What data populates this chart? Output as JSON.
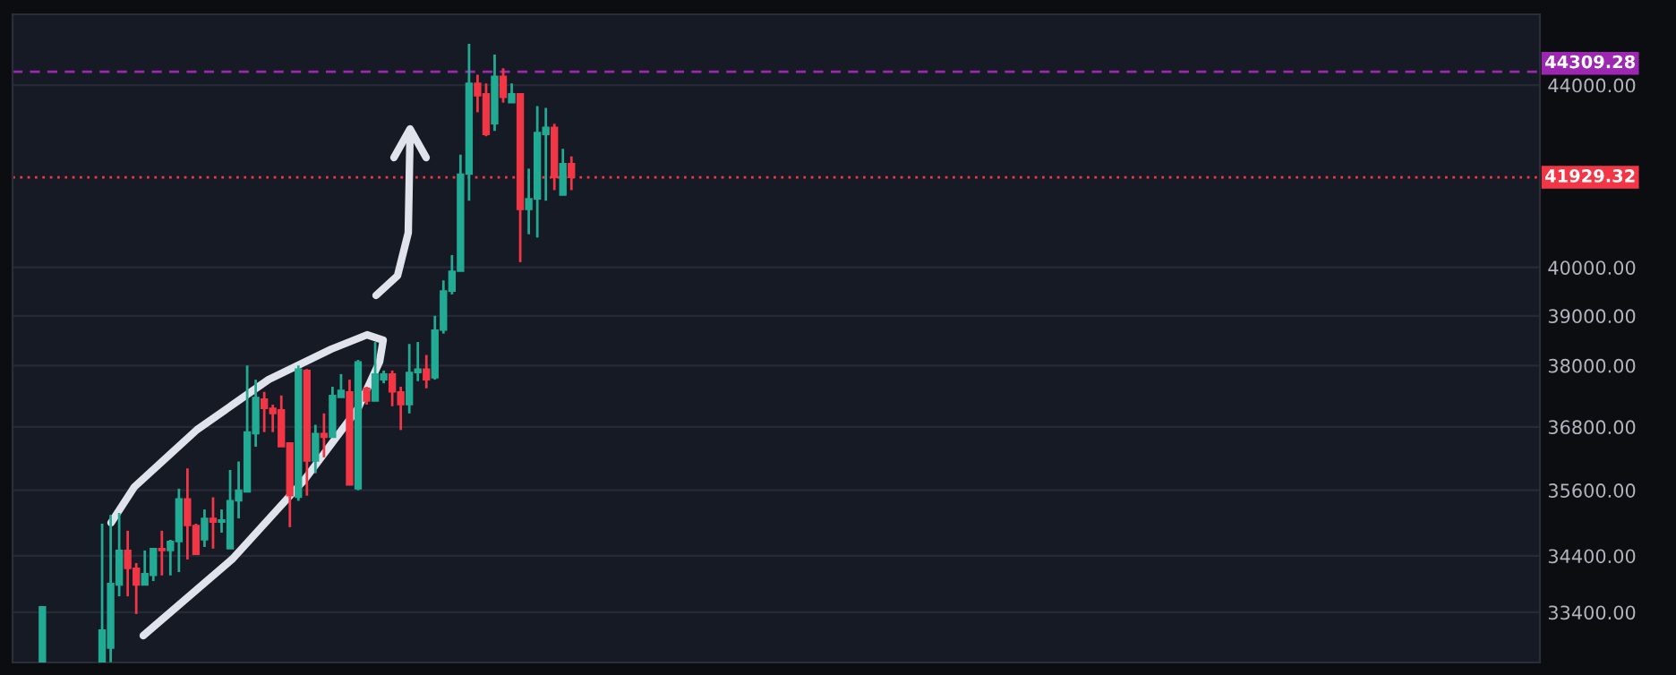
{
  "chart_data": {
    "type": "candlestick",
    "categories": [
      null,
      null,
      null,
      null,
      null,
      null,
      null,
      null,
      null,
      null,
      null,
      null,
      null,
      null,
      null,
      null,
      null,
      null,
      null,
      null,
      null,
      null,
      null,
      null,
      null,
      null,
      null,
      null,
      null,
      null,
      null,
      null,
      null,
      null,
      null,
      null,
      null,
      null,
      null,
      null,
      null,
      null,
      null,
      null,
      null,
      null,
      null,
      null,
      null,
      null,
      null,
      null,
      null,
      null,
      null,
      null,
      null,
      null,
      null,
      null,
      null,
      null,
      null,
      null,
      null,
      null,
      null,
      null,
      null,
      null,
      null,
      null,
      null,
      null,
      null,
      null,
      null,
      null,
      null,
      null,
      null,
      null,
      null,
      null,
      null,
      null,
      null,
      null,
      null,
      null,
      null,
      null,
      null,
      null,
      null,
      null,
      null,
      null,
      null,
      null,
      null,
      null,
      null,
      null,
      null,
      null,
      null,
      null,
      null,
      null,
      null,
      null,
      null,
      null,
      null,
      null,
      null,
      null,
      null,
      null,
      null,
      null,
      null,
      null,
      null,
      null,
      null,
      null,
      null,
      null,
      null,
      null,
      null,
      null,
      null,
      null,
      null,
      null,
      null,
      null,
      null,
      null,
      null,
      null,
      null,
      null,
      null,
      null,
      null,
      null,
      null,
      null,
      null,
      null,
      null,
      null,
      null,
      null,
      null,
      null,
      null,
      null,
      null,
      null,
      null,
      null,
      null,
      null,
      null,
      null,
      null,
      null,
      null,
      null,
      null,
      null,
      null,
      null,
      null
    ],
    "ohlc": [
      null,
      null,
      null,
      [
        32540,
        33494,
        32540,
        33494
      ],
      null,
      null,
      null,
      null,
      null,
      null,
      [
        32540,
        34983,
        32540,
        33090
      ],
      [
        32780,
        35145,
        32540,
        33904
      ],
      [
        33880,
        35180,
        33680,
        34497
      ],
      [
        34497,
        34855,
        33680,
        34175
      ],
      [
        34175,
        34270,
        33370,
        33880
      ],
      [
        33880,
        34497,
        33880,
        34080
      ],
      [
        34050,
        34530,
        33950,
        34530
      ],
      [
        34530,
        34855,
        34050,
        34497
      ],
      [
        34497,
        34690,
        34050,
        34660
      ],
      [
        34660,
        35630,
        34110,
        35440
      ],
      [
        35440,
        36010,
        34335,
        34950
      ],
      [
        34950,
        34983,
        34430,
        34430
      ],
      [
        34690,
        35245,
        34560,
        35080
      ],
      [
        35080,
        35470,
        34530,
        35015
      ],
      [
        35015,
        35245,
        34820,
        35050
      ],
      [
        34530,
        35980,
        34530,
        35405
      ],
      [
        35405,
        36140,
        35080,
        35600
      ],
      [
        35570,
        38000,
        35570,
        36700
      ],
      [
        36670,
        37720,
        36420,
        37370
      ],
      [
        37340,
        37480,
        36700,
        37160
      ],
      [
        37160,
        37230,
        36700,
        37060
      ],
      [
        37130,
        37410,
        36420,
        36420
      ],
      [
        36490,
        36490,
        34920,
        35500
      ],
      [
        35470,
        38000,
        35405,
        37930
      ],
      [
        37900,
        37930,
        35500,
        36150
      ],
      [
        36150,
        36840,
        35920,
        36670
      ],
      [
        36670,
        37060,
        36220,
        36600
      ],
      [
        36600,
        37580,
        36600,
        37410
      ],
      [
        37370,
        37830,
        37370,
        37510
      ],
      [
        37480,
        37720,
        35700,
        35700
      ],
      [
        35630,
        38110,
        35600,
        38070
      ],
      [
        37550,
        37580,
        37230,
        37300
      ],
      [
        37300,
        38470,
        37300,
        37830
      ],
      [
        37720,
        37900,
        37650,
        37830
      ],
      [
        37830,
        37900,
        37200,
        37480
      ],
      [
        37480,
        37580,
        36740,
        37230
      ],
      [
        37230,
        38430,
        37060,
        37860
      ],
      [
        37860,
        38470,
        37690,
        37930
      ],
      [
        37930,
        38210,
        37550,
        37720
      ],
      [
        37760,
        39000,
        37720,
        38710
      ],
      [
        38710,
        39730,
        38640,
        39510
      ],
      [
        39510,
        40260,
        39440,
        39920
      ],
      [
        39920,
        42430,
        39920,
        42000
      ],
      [
        42000,
        44960,
        41420,
        44040
      ],
      [
        44040,
        44240,
        43380,
        43760
      ],
      [
        43800,
        44040,
        42840,
        42880
      ],
      [
        43120,
        44710,
        42960,
        44200
      ],
      [
        44200,
        44390,
        43600,
        43720
      ],
      [
        43600,
        44040,
        43600,
        43800
      ],
      [
        43800,
        43800,
        40110,
        41230
      ],
      [
        41230,
        42120,
        40700,
        41460
      ],
      [
        41460,
        43520,
        40630,
        42920
      ],
      [
        42880,
        43480,
        41420,
        43040
      ],
      [
        43040,
        43120,
        41650,
        41930
      ],
      [
        41540,
        42560,
        41540,
        42230
      ],
      [
        42230,
        42390,
        41650,
        41929.32
      ],
      null,
      null,
      null,
      null,
      null,
      null,
      null,
      null,
      null,
      null,
      null,
      null,
      null,
      null,
      null,
      null,
      null,
      null,
      null,
      null,
      null,
      null,
      null,
      null,
      null,
      null,
      null,
      null,
      null,
      null,
      null,
      null,
      null,
      null,
      null,
      null,
      null,
      null,
      null,
      null,
      null,
      null,
      null,
      null,
      null,
      null,
      null,
      null,
      null,
      null,
      null,
      null,
      null,
      null,
      null,
      null,
      null,
      null,
      null,
      null,
      null,
      null,
      null,
      null,
      null,
      null,
      null,
      null,
      null,
      null,
      null,
      null,
      null,
      null,
      null,
      null,
      null,
      null,
      null,
      null,
      null,
      null,
      null,
      null,
      null,
      null,
      null,
      null,
      null,
      null,
      null,
      null,
      null,
      null,
      null,
      null,
      null,
      null,
      null,
      null,
      null,
      null,
      null,
      null,
      null,
      null,
      null,
      null,
      null,
      null,
      null,
      null,
      null
    ],
    "colors": [
      null,
      null,
      null,
      "#22ab94",
      null,
      null,
      null,
      null,
      null,
      null,
      "#22ab94",
      "#22ab94",
      "#22ab94",
      "#f23645",
      "#f23645",
      "#22ab94",
      "#22ab94",
      "#f23645",
      "#22ab94",
      "#22ab94",
      "#f23645",
      "#f23645",
      "#22ab94",
      "#f23645",
      "#22ab94",
      "#22ab94",
      "#22ab94",
      "#22ab94",
      "#22ab94",
      "#f23645",
      "#f23645",
      "#f23645",
      "#f23645",
      "#22ab94",
      "#f23645",
      "#22ab94",
      "#f23645",
      "#22ab94",
      "#22ab94",
      "#f23645",
      "#22ab94",
      "#f23645",
      "#22ab94",
      "#22ab94",
      "#f23645",
      "#f23645",
      "#22ab94",
      "#22ab94",
      "#f23645",
      "#22ab94",
      "#22ab94",
      "#22ab94",
      "#22ab94",
      "#22ab94",
      "#f23645",
      "#f23645",
      "#22ab94",
      "#f23645",
      "#22ab94",
      "#f23645",
      "#22ab94",
      "#22ab94",
      "#22ab94",
      "#f23645",
      "#22ab94",
      "#f23645",
      null,
      null,
      null,
      null,
      null,
      null,
      null,
      null,
      null,
      null,
      null,
      null,
      null,
      null,
      null,
      null,
      null,
      null,
      null,
      null,
      null,
      null,
      null,
      null,
      null,
      null,
      null,
      null,
      null,
      null,
      null,
      null,
      null,
      null,
      null,
      null,
      null,
      null,
      null,
      null,
      null,
      null,
      null,
      null,
      null,
      null,
      null,
      null,
      null,
      null,
      null,
      null,
      null,
      null,
      null,
      null,
      null,
      null,
      null,
      null,
      null,
      null,
      null,
      null,
      null,
      null,
      null,
      null,
      null,
      null,
      null,
      null,
      null,
      null,
      null,
      null,
      null,
      null,
      null,
      null,
      null,
      null,
      null,
      null,
      null,
      null,
      null,
      null,
      null,
      null,
      null,
      null,
      null,
      null,
      null,
      null,
      null,
      null,
      null,
      null,
      null,
      null,
      null,
      null,
      null,
      null,
      null,
      null,
      null,
      null,
      null,
      null,
      null
    ],
    "log": "y",
    "ylim": [
      32535,
      45660
    ],
    "yticks": [
      {
        "value": 33400,
        "label": "33400.00"
      },
      {
        "value": 34400,
        "label": "34400.00"
      },
      {
        "value": 35600,
        "label": "35600.00"
      },
      {
        "value": 36800,
        "label": "36800.00"
      },
      {
        "value": 38000,
        "label": "38000.00"
      },
      {
        "value": 39000,
        "label": "39000.00"
      },
      {
        "value": 40000,
        "label": "40000.00"
      },
      {
        "value": 44000,
        "label": "44000.00"
      }
    ],
    "tick_labels": "y",
    "grid": "y",
    "legend": false,
    "ref_lines": [
      {
        "axis": "y",
        "value": 44309.28,
        "label": "44309.28",
        "color": "#9c27b0",
        "line_style": "dashed"
      },
      {
        "axis": "y",
        "value": 41929.32,
        "label": "41929.32",
        "color": "#f23645",
        "line_style": "dotted"
      }
    ]
  }
}
